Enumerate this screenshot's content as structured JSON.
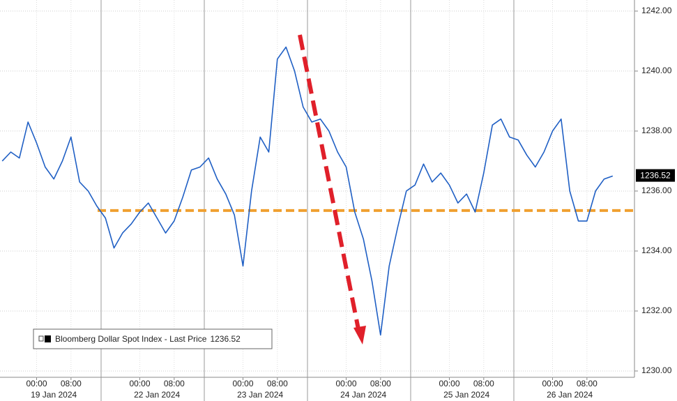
{
  "chart_data": {
    "type": "line",
    "categories": [
      null,
      null,
      null,
      null,
      "00:00",
      null,
      null,
      null,
      "08:00",
      null,
      null,
      null,
      null,
      null,
      null,
      null,
      "00:00",
      null,
      null,
      null,
      "08:00",
      null,
      null,
      null,
      null,
      null,
      null,
      null,
      "00:00",
      null,
      null,
      null,
      "08:00",
      null,
      null,
      null,
      null,
      null,
      null,
      null,
      "00:00",
      null,
      null,
      null,
      "08:00",
      null,
      null,
      null,
      null,
      null,
      null,
      null,
      "00:00",
      null,
      null,
      null,
      "08:00",
      null,
      null,
      null,
      null,
      null,
      null,
      null,
      "00:00",
      null,
      null,
      null,
      "08:00",
      null,
      null,
      null
    ],
    "day_labels": [
      "19 Jan 2024",
      "22 Jan 2024",
      "23 Jan 2024",
      "24 Jan 2024",
      "25 Jan 2024",
      "26 Jan 2024"
    ],
    "series": [
      {
        "name": "Bloomberg Dollar Spot Index - Last Price",
        "color": "#1f5fc4",
        "values": [
          1237.0,
          1237.3,
          1237.1,
          1238.3,
          1237.6,
          1236.8,
          1236.4,
          1237.0,
          1237.8,
          1236.3,
          1236.0,
          1235.5,
          1235.1,
          1234.1,
          1234.6,
          1234.9,
          1235.3,
          1235.6,
          1235.1,
          1234.6,
          1235.0,
          1235.8,
          1236.7,
          1236.8,
          1237.1,
          1236.4,
          1235.9,
          1235.2,
          1233.5,
          1236.0,
          1237.8,
          1237.3,
          1240.4,
          1240.8,
          1240.0,
          1238.8,
          1238.3,
          1238.4,
          1238.0,
          1237.3,
          1236.8,
          1235.3,
          1234.4,
          1233.0,
          1231.2,
          1233.5,
          1234.8,
          1236.0,
          1236.2,
          1236.9,
          1236.3,
          1236.6,
          1236.2,
          1235.6,
          1235.9,
          1235.3,
          1236.6,
          1238.2,
          1238.4,
          1237.8,
          1237.7,
          1237.2,
          1236.8,
          1237.3,
          1238.0,
          1238.4,
          1236.0,
          1235.0,
          1235.0,
          1236.0,
          1236.4,
          1236.5
        ]
      }
    ],
    "last_price": 1236.52,
    "reference_line": {
      "value": 1235.35,
      "color": "#f0a030"
    },
    "ylim": [
      1229.79,
      1242.37
    ],
    "yticks": [
      {
        "value": 1230,
        "label": "1230.00"
      },
      {
        "value": 1232,
        "label": "1232.00"
      },
      {
        "value": 1234,
        "label": "1234.00"
      },
      {
        "value": 1236,
        "label": "1236.00"
      },
      {
        "value": 1238,
        "label": "1238.00"
      },
      {
        "value": 1240,
        "label": "1240.00"
      },
      {
        "value": 1242,
        "label": "1242.00"
      }
    ],
    "grid": true
  }
}
